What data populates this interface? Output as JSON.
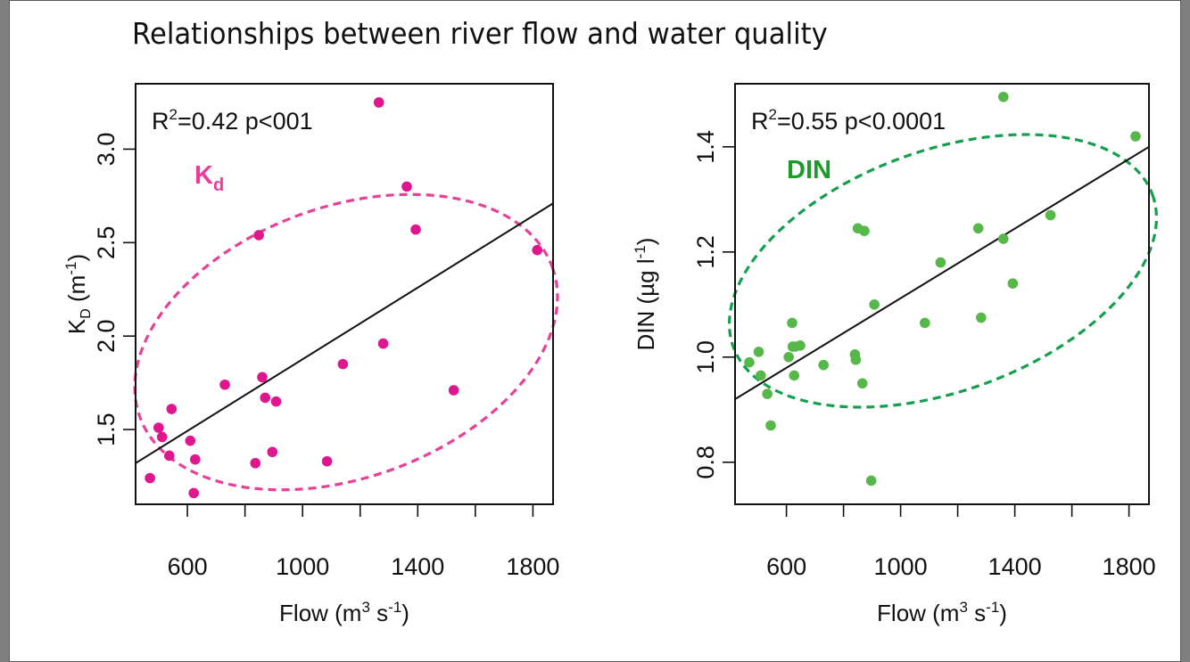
{
  "page_title": "Relationships between river flow and water quality",
  "chart_data": [
    {
      "type": "scatter",
      "panel": "left",
      "xlabel": {
        "text": "Flow (m",
        "sup1": "3",
        "mid": " s",
        "sup2": "-1",
        "end": ")"
      },
      "ylabel": {
        "main": "K",
        "sub": "D",
        "rest": " (m",
        "sup": "-1",
        "end": ")"
      },
      "xlim": [
        420,
        1870
      ],
      "ylim": [
        1.1,
        3.35
      ],
      "xticks": [
        600,
        800,
        1000,
        1200,
        1400,
        1600,
        1800
      ],
      "xtick_labels": [
        "600",
        "",
        "1000",
        "",
        "1400",
        "",
        "1800"
      ],
      "yticks": [
        1.5,
        2.0,
        2.5,
        3.0
      ],
      "ytick_labels": [
        "1.5",
        "2.0",
        "2.5",
        "3.0"
      ],
      "stat": {
        "main": "R",
        "sup": "2",
        "rest": "=0.42 p<001"
      },
      "annotation": {
        "main": "K",
        "sub": "d"
      },
      "point_color": "#e0168e",
      "ellipse_color": "#ea3f96",
      "annotation_color": "#ec3c98",
      "x": [
        470,
        500,
        512,
        537,
        545,
        610,
        622,
        627,
        730,
        836,
        848,
        860,
        870,
        895,
        908,
        1085,
        1140,
        1280,
        1265,
        1362,
        1393,
        1525,
        1815
      ],
      "y": [
        1.24,
        1.51,
        1.46,
        1.36,
        1.61,
        1.44,
        1.16,
        1.34,
        1.74,
        1.32,
        2.54,
        1.78,
        1.67,
        1.38,
        1.65,
        1.33,
        1.85,
        1.96,
        3.25,
        2.8,
        2.57,
        1.71,
        2.46
      ],
      "regression": {
        "x": [
          420,
          1870
        ],
        "y": [
          1.32,
          2.71
        ]
      }
    },
    {
      "type": "scatter",
      "panel": "right",
      "xlabel": {
        "text": "Flow (m",
        "sup1": "3",
        "mid": " s",
        "sup2": "-1",
        "end": ")"
      },
      "ylabel": {
        "main": "DIN (µg l",
        "sup": "-1",
        "end": ")"
      },
      "xlim": [
        420,
        1870
      ],
      "ylim": [
        0.72,
        1.52
      ],
      "xticks": [
        600,
        800,
        1000,
        1200,
        1400,
        1600,
        1800
      ],
      "xtick_labels": [
        "600",
        "",
        "1000",
        "",
        "1400",
        "",
        "1800"
      ],
      "yticks": [
        0.8,
        1.0,
        1.2,
        1.4
      ],
      "ytick_labels": [
        "0.8",
        "1.0",
        "1.2",
        "1.4"
      ],
      "stat": {
        "main": "R",
        "sup": "2",
        "rest": "=0.55 p<0.0001"
      },
      "annotation": {
        "main": "DIN",
        "sub": ""
      },
      "point_color": "#56b848",
      "ellipse_color": "#12a04c",
      "annotation_color": "#1c9a2a",
      "x": [
        470,
        503,
        510,
        533,
        545,
        608,
        620,
        622,
        627,
        630,
        648,
        730,
        840,
        843,
        850,
        866,
        873,
        897,
        908,
        1085,
        1140,
        1272,
        1282,
        1360,
        1393,
        1525,
        1823,
        1360
      ],
      "y": [
        0.99,
        1.01,
        0.965,
        0.93,
        0.87,
        1.0,
        1.065,
        1.02,
        0.965,
        1.02,
        1.022,
        0.985,
        1.005,
        0.995,
        1.245,
        0.95,
        1.24,
        0.765,
        1.1,
        1.065,
        1.18,
        1.245,
        1.075,
        1.225,
        1.14,
        1.27,
        1.42,
        1.495
      ],
      "regression": {
        "x": [
          420,
          1870
        ],
        "y": [
          0.92,
          1.4
        ]
      }
    }
  ]
}
